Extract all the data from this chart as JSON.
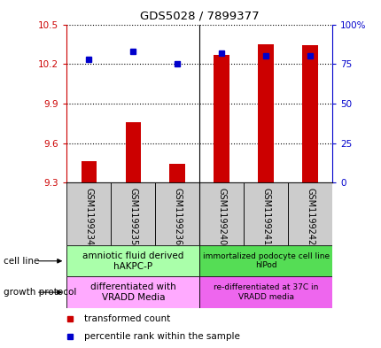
{
  "title": "GDS5028 / 7899377",
  "samples": [
    "GSM1199234",
    "GSM1199235",
    "GSM1199236",
    "GSM1199240",
    "GSM1199241",
    "GSM1199242"
  ],
  "bar_values": [
    9.46,
    9.76,
    9.44,
    10.27,
    10.35,
    10.34
  ],
  "dot_percentile": [
    78,
    83,
    75,
    82,
    80,
    80
  ],
  "ylim_left": [
    9.3,
    10.5
  ],
  "ylim_right": [
    0,
    100
  ],
  "yticks_left": [
    9.3,
    9.6,
    9.9,
    10.2,
    10.5
  ],
  "yticks_right": [
    0,
    25,
    50,
    75,
    100
  ],
  "ytick_labels_right": [
    "0",
    "25",
    "50",
    "75",
    "100%"
  ],
  "bar_color": "#cc0000",
  "dot_color": "#0000cc",
  "cell_line_labels": [
    "amniotic fluid derived\nhAKPC-P",
    "immortalized podocyte cell line\nhIPod"
  ],
  "cell_line_colors": [
    "#aaffaa",
    "#55dd55"
  ],
  "growth_protocol_labels": [
    "differentiated with\nVRADD Media",
    "re-differentiated at 37C in\nVRADD media"
  ],
  "growth_protocol_colors": [
    "#ffaaff",
    "#ee66ee"
  ],
  "sample_box_color": "#cccccc",
  "bg_color": "#ffffff",
  "tick_label_color_left": "#cc0000",
  "tick_label_color_right": "#0000cc",
  "bar_width": 0.35
}
